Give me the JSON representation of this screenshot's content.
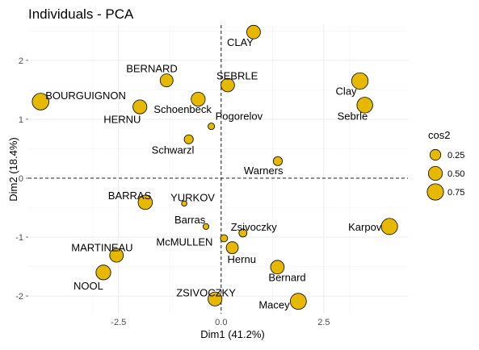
{
  "chart_data": {
    "type": "scatter",
    "title": "Individuals - PCA",
    "xlabel": "Dim1 (41.2%)",
    "ylabel": "Dim2 (18.4%)",
    "xlim": [
      -4.7,
      4.55
    ],
    "ylim": [
      -2.3,
      2.6
    ],
    "xticks": [
      -2.5,
      0.0,
      2.5
    ],
    "xtick_labels": [
      "-2.5",
      "0.0",
      "2.5"
    ],
    "yticks": [
      -2,
      -1,
      0,
      1,
      2
    ],
    "ytick_labels": [
      "-2",
      "-1",
      "0",
      "1",
      "2"
    ],
    "grid": true,
    "reference_lines": {
      "x": 0,
      "y": 0,
      "style": "dashed"
    },
    "point_color": "#E7B800",
    "point_outline": "#000000",
    "legend": {
      "title": "cos2",
      "position": "right",
      "entries": [
        {
          "label": "0.25",
          "value": 0.25
        },
        {
          "label": "0.50",
          "value": 0.5
        },
        {
          "label": "0.75",
          "value": 0.75
        }
      ]
    },
    "points": [
      {
        "label": "CLAY",
        "x": 0.79,
        "y": 2.48,
        "cos2": 0.47
      },
      {
        "label": "BERNARD",
        "x": -1.33,
        "y": 1.66,
        "cos2": 0.41
      },
      {
        "label": "SEBRLE",
        "x": 0.16,
        "y": 1.58,
        "cos2": 0.46
      },
      {
        "label": "Clay",
        "x": 3.38,
        "y": 1.65,
        "cos2": 0.76
      },
      {
        "label": "Sebrle",
        "x": 3.5,
        "y": 1.24,
        "cos2": 0.68
      },
      {
        "label": "BOURGUIGNON",
        "x": -4.4,
        "y": 1.3,
        "cos2": 0.79
      },
      {
        "label": "HERNU",
        "x": -1.98,
        "y": 1.21,
        "cos2": 0.5
      },
      {
        "label": "Schoenbeck",
        "x": -0.56,
        "y": 1.34,
        "cos2": 0.51
      },
      {
        "label": "Pogorelov",
        "x": -0.24,
        "y": 0.88,
        "cos2": 0.05
      },
      {
        "label": "Schwarzl",
        "x": -0.79,
        "y": 0.66,
        "cos2": 0.15
      },
      {
        "label": "Warners",
        "x": 1.38,
        "y": 0.29,
        "cos2": 0.15
      },
      {
        "label": "BARRAS",
        "x": -1.85,
        "y": -0.41,
        "cos2": 0.53
      },
      {
        "label": "YURKOV",
        "x": -0.9,
        "y": -0.43,
        "cos2": 0.02
      },
      {
        "label": "Barras",
        "x": -0.37,
        "y": -0.82,
        "cos2": 0.03
      },
      {
        "label": "Zsivoczky",
        "x": 0.53,
        "y": -0.93,
        "cos2": 0.1
      },
      {
        "label": "McMULLEN",
        "x": 0.07,
        "y": -1.02,
        "cos2": 0.07
      },
      {
        "label": "Karpov",
        "x": 4.1,
        "y": -0.82,
        "cos2": 0.74
      },
      {
        "label": "Hernu",
        "x": 0.27,
        "y": -1.18,
        "cos2": 0.34
      },
      {
        "label": "MARTINEAU",
        "x": -2.55,
        "y": -1.31,
        "cos2": 0.47
      },
      {
        "label": "Bernard",
        "x": 1.37,
        "y": -1.51,
        "cos2": 0.47
      },
      {
        "label": "NOOL",
        "x": -2.87,
        "y": -1.6,
        "cos2": 0.58
      },
      {
        "label": "ZSIVOCZKY",
        "x": -0.15,
        "y": -2.05,
        "cos2": 0.5
      },
      {
        "label": "Macey",
        "x": 1.88,
        "y": -2.09,
        "cos2": 0.72
      }
    ]
  }
}
